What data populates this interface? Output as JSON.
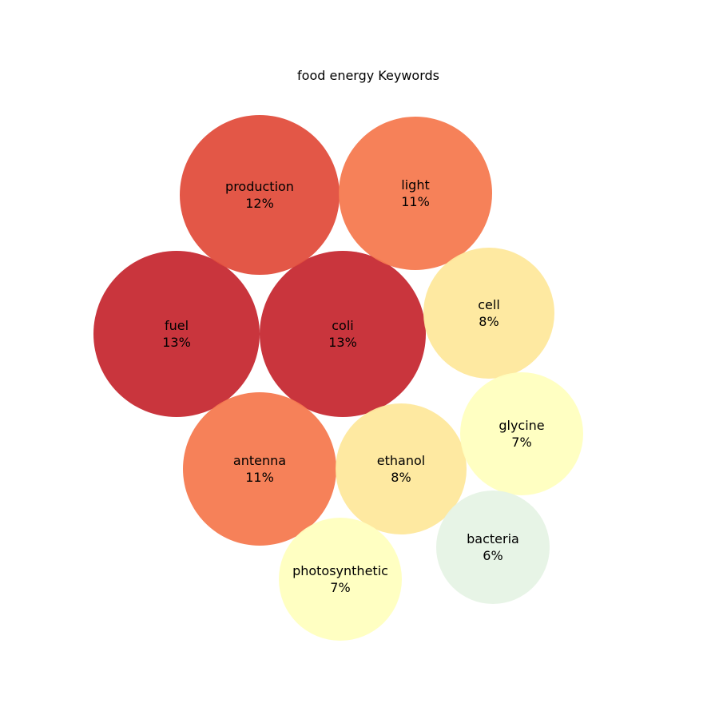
{
  "chart_data": {
    "type": "bubble",
    "title": "food energy Keywords",
    "bubbles": [
      {
        "label": "fuel",
        "value": "13%",
        "color": "#c62a33"
      },
      {
        "label": "coli",
        "value": "13%",
        "color": "#c62a33"
      },
      {
        "label": "production",
        "value": "12%",
        "color": "#e24e3d"
      },
      {
        "label": "light",
        "value": "11%",
        "color": "#f57a50"
      },
      {
        "label": "antenna",
        "value": "11%",
        "color": "#f57a50"
      },
      {
        "label": "cell",
        "value": "8%",
        "color": "#fee89c"
      },
      {
        "label": "ethanol",
        "value": "8%",
        "color": "#fee89c"
      },
      {
        "label": "glycine",
        "value": "7%",
        "color": "#ffffbf"
      },
      {
        "label": "photosynthetic",
        "value": "7%",
        "color": "#ffffbf"
      },
      {
        "label": "bacteria",
        "value": "6%",
        "color": "#e6f3e5"
      }
    ]
  }
}
